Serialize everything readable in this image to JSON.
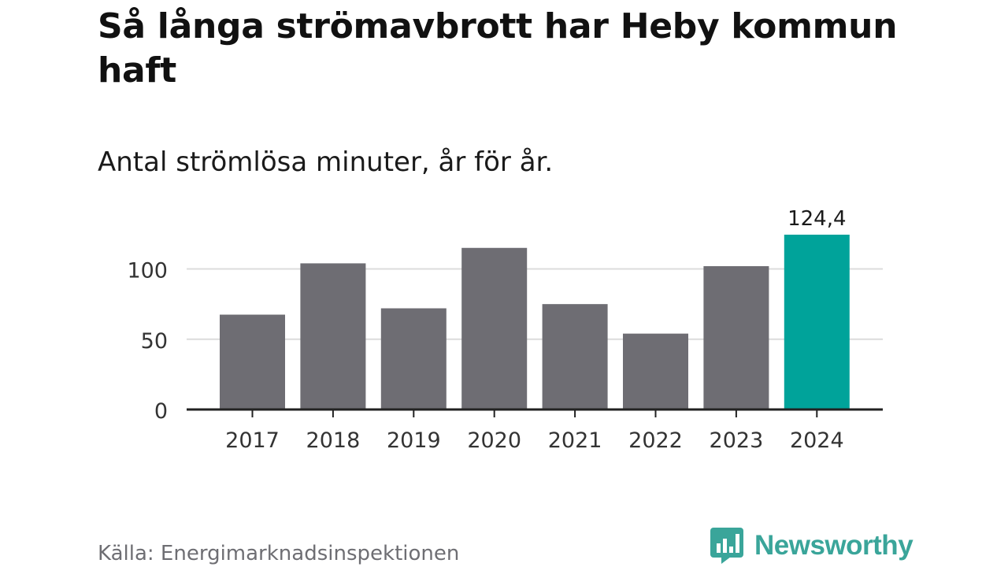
{
  "title": "Så långa strömavbrott har Heby kommun haft",
  "subtitle": "Antal strömlösa minuter, år för år.",
  "source": "Källa: Energimarknadsinspektionen",
  "brand": {
    "name": "Newsworthy",
    "color": "#3aa59a",
    "icon": "bar-chart-speech-bubble-icon"
  },
  "chart_data": {
    "type": "bar",
    "categories": [
      "2017",
      "2018",
      "2019",
      "2020",
      "2021",
      "2022",
      "2023",
      "2024"
    ],
    "values": [
      67.5,
      104,
      72,
      115,
      75,
      54,
      102,
      124.4
    ],
    "bar_colors": [
      "#6e6d73",
      "#6e6d73",
      "#6e6d73",
      "#6e6d73",
      "#6e6d73",
      "#6e6d73",
      "#6e6d73",
      "#00a39a"
    ],
    "data_labels": [
      {
        "index": 7,
        "text": "124,4"
      }
    ],
    "yticks": [
      0,
      50,
      100
    ],
    "ylim": [
      0,
      124.4
    ],
    "grid": true,
    "xlabel": "",
    "ylabel": ""
  }
}
